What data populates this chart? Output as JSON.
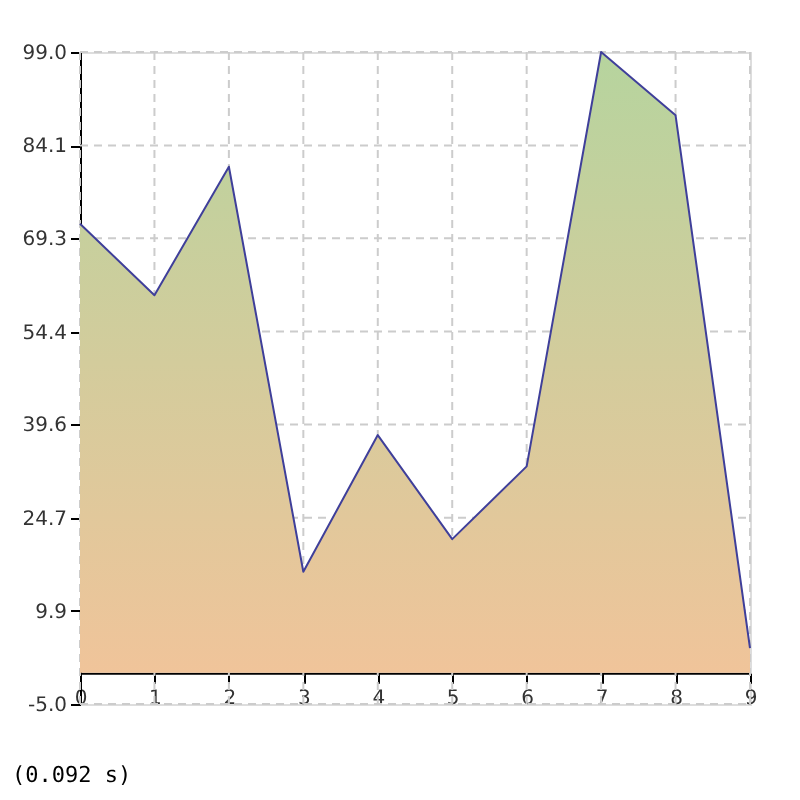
{
  "chart_data": {
    "type": "area",
    "x": [
      0,
      1,
      2,
      3,
      4,
      5,
      6,
      7,
      8,
      9
    ],
    "series": [
      {
        "color": "#3f3f9a",
        "values": [
          71.6,
          60.2,
          80.7,
          16.1,
          37.9,
          21.3,
          32.9,
          99.0,
          88.9,
          3.9
        ]
      }
    ],
    "xlim": [
      0,
      9
    ],
    "xticks": [
      0,
      1,
      2,
      3,
      4,
      5,
      6,
      7,
      8,
      9
    ],
    "ylim": [
      -5.0,
      99.0
    ],
    "yticks": [
      {
        "value": -5.0,
        "label": "-5.0"
      },
      {
        "value": 9.9,
        "label": "9.9"
      },
      {
        "value": 24.7,
        "label": "24.7"
      },
      {
        "value": 39.6,
        "label": "39.6"
      },
      {
        "value": 54.4,
        "label": "54.4"
      },
      {
        "value": 69.3,
        "label": "69.3"
      },
      {
        "value": 84.1,
        "label": "84.1"
      },
      {
        "value": 99.0,
        "label": "99.0"
      }
    ],
    "grid": true,
    "legend": false,
    "marker": "none",
    "line_style": "solid",
    "annotations": [
      "(0.092 s)"
    ]
  }
}
